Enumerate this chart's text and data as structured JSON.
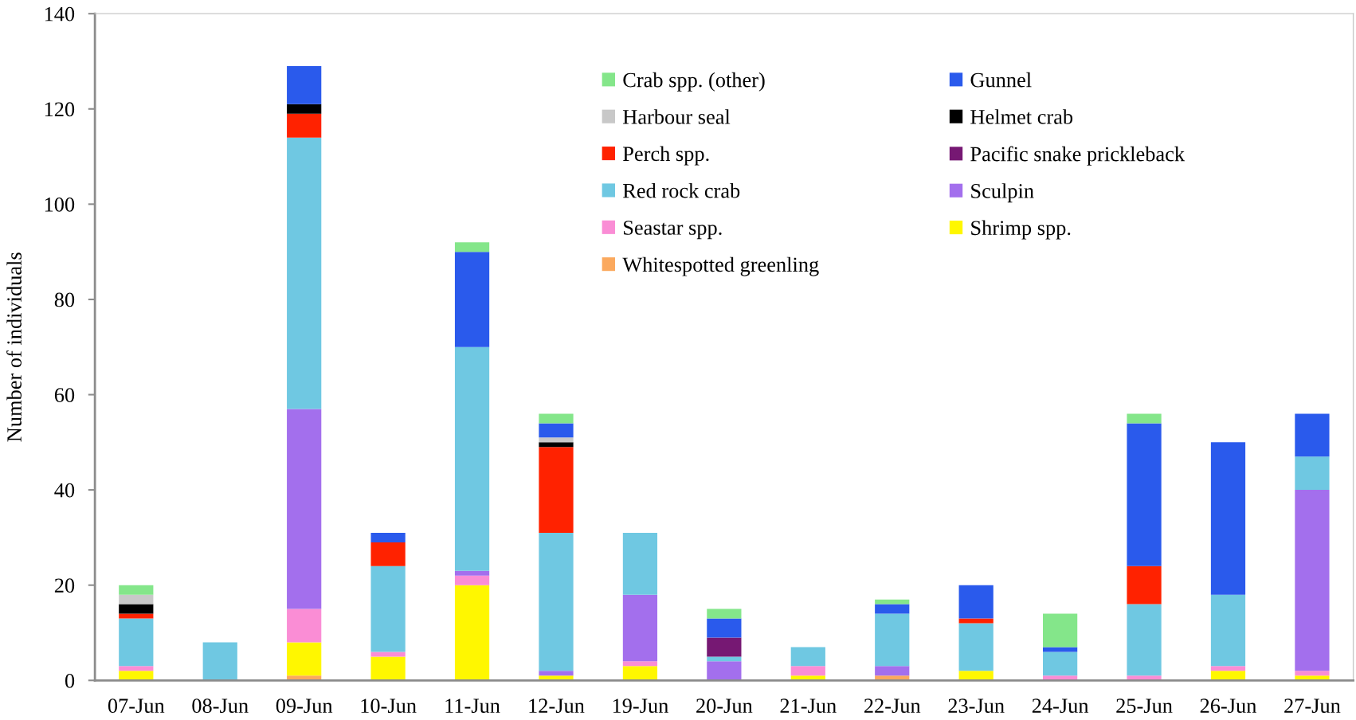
{
  "chart_data": {
    "type": "bar",
    "stacked": true,
    "ylabel": "Number of individuals",
    "categories": [
      "07-Jun",
      "08-Jun",
      "09-Jun",
      "10-Jun",
      "11-Jun",
      "12-Jun",
      "19-Jun",
      "20-Jun",
      "21-Jun",
      "22-Jun",
      "23-Jun",
      "24-Jun",
      "25-Jun",
      "26-Jun",
      "27-Jun"
    ],
    "series": [
      {
        "name": "Whitespotted greenling",
        "color": "#fba95e",
        "values": [
          0,
          0,
          1,
          0,
          0,
          0,
          0,
          0,
          0,
          1,
          0,
          0,
          0,
          0,
          0
        ]
      },
      {
        "name": "Shrimp spp.",
        "color": "#fff700",
        "values": [
          2,
          0,
          7,
          5,
          20,
          1,
          3,
          0,
          1,
          0,
          2,
          0,
          0,
          2,
          1
        ]
      },
      {
        "name": "Seastar spp.",
        "color": "#fa8dd5",
        "values": [
          1,
          0,
          7,
          1,
          2,
          0,
          1,
          0,
          2,
          0,
          0,
          1,
          1,
          1,
          1
        ]
      },
      {
        "name": "Sculpin",
        "color": "#a36fed",
        "values": [
          0,
          0,
          42,
          0,
          1,
          1,
          14,
          4,
          0,
          2,
          0,
          0,
          0,
          0,
          38
        ]
      },
      {
        "name": "Red rock crab",
        "color": "#6fc8e2",
        "values": [
          10,
          8,
          57,
          18,
          47,
          29,
          13,
          1,
          4,
          11,
          10,
          5,
          15,
          15,
          7
        ]
      },
      {
        "name": "Pacific snake prickleback",
        "color": "#761873",
        "values": [
          0,
          0,
          0,
          0,
          0,
          0,
          0,
          4,
          0,
          0,
          0,
          0,
          0,
          0,
          0
        ]
      },
      {
        "name": "Perch spp.",
        "color": "#ff2200",
        "values": [
          1,
          0,
          5,
          5,
          0,
          18,
          0,
          0,
          0,
          0,
          1,
          0,
          8,
          0,
          0
        ]
      },
      {
        "name": "Helmet crab",
        "color": "#000000",
        "values": [
          2,
          0,
          2,
          0,
          0,
          1,
          0,
          0,
          0,
          0,
          0,
          0,
          0,
          0,
          0
        ]
      },
      {
        "name": "Harbour seal",
        "color": "#c8c8c8",
        "values": [
          2,
          0,
          0,
          0,
          0,
          1,
          0,
          0,
          0,
          0,
          0,
          0,
          0,
          0,
          0
        ]
      },
      {
        "name": "Gunnel",
        "color": "#2a5aec",
        "values": [
          0,
          0,
          8,
          2,
          20,
          3,
          0,
          4,
          0,
          2,
          7,
          1,
          30,
          32,
          9
        ]
      },
      {
        "name": "Crab spp. (other)",
        "color": "#84e68a",
        "values": [
          2,
          0,
          0,
          0,
          2,
          2,
          0,
          2,
          0,
          1,
          0,
          7,
          2,
          0,
          0
        ]
      }
    ],
    "ylim": [
      0,
      140
    ],
    "yticks": [
      0,
      20,
      40,
      60,
      80,
      100,
      120,
      140
    ],
    "legend": "top"
  }
}
